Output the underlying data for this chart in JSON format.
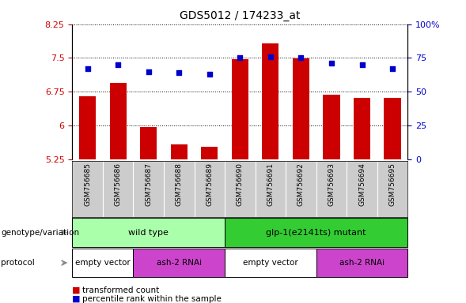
{
  "title": "GDS5012 / 174233_at",
  "samples": [
    "GSM756685",
    "GSM756686",
    "GSM756687",
    "GSM756688",
    "GSM756689",
    "GSM756690",
    "GSM756691",
    "GSM756692",
    "GSM756693",
    "GSM756694",
    "GSM756695"
  ],
  "transformed_count": [
    6.65,
    6.95,
    5.97,
    5.58,
    5.52,
    7.48,
    7.82,
    7.49,
    6.68,
    6.62,
    6.62
  ],
  "percentile_rank": [
    67,
    70,
    65,
    64,
    63,
    75,
    76,
    75,
    71,
    70,
    67
  ],
  "ylim_left": [
    5.25,
    8.25
  ],
  "ylim_right": [
    0,
    100
  ],
  "yticks_left": [
    5.25,
    6.0,
    6.75,
    7.5,
    8.25
  ],
  "yticks_right": [
    0,
    25,
    50,
    75,
    100
  ],
  "ytick_labels_left": [
    "5.25",
    "6",
    "6.75",
    "7.5",
    "8.25"
  ],
  "ytick_labels_right": [
    "0",
    "25",
    "50",
    "75",
    "100%"
  ],
  "bar_color": "#cc0000",
  "dot_color": "#0000cc",
  "bg_color": "#cccccc",
  "wt_color": "#aaffaa",
  "glp_color": "#33cc33",
  "empty_color": "#ffffff",
  "rnai_color": "#cc44cc",
  "protocol_segments": [
    [
      0,
      2,
      "empty vector",
      "#ffffff"
    ],
    [
      2,
      5,
      "ash-2 RNAi",
      "#cc44cc"
    ],
    [
      5,
      8,
      "empty vector",
      "#ffffff"
    ],
    [
      8,
      11,
      "ash-2 RNAi",
      "#cc44cc"
    ]
  ]
}
